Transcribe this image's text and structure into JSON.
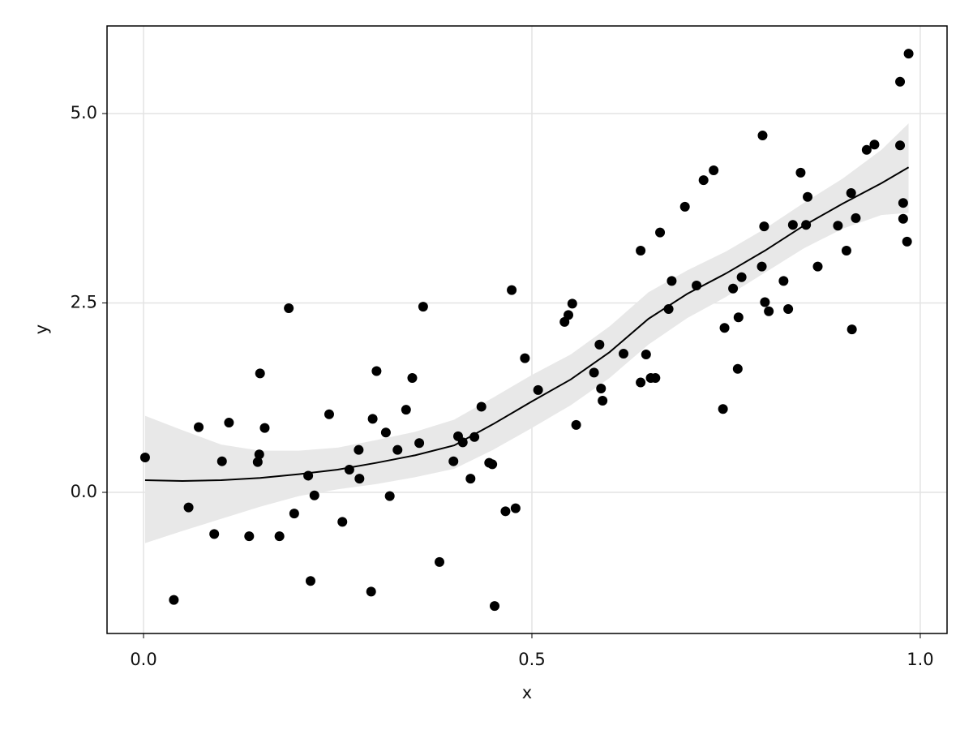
{
  "chart_data": {
    "type": "scatter",
    "xlabel": "x",
    "ylabel": "y",
    "xlim": [
      -0.047,
      1.0345
    ],
    "ylim": [
      -1.863,
      6.156
    ],
    "xticks": [
      {
        "value": 0,
        "label": "0.0"
      },
      {
        "value": 0.5,
        "label": "0.5"
      },
      {
        "value": 1,
        "label": "1.0"
      }
    ],
    "yticks": [
      {
        "value": 0,
        "label": "0.0"
      },
      {
        "value": 2.5,
        "label": "2.5"
      },
      {
        "value": 5,
        "label": "5.0"
      }
    ],
    "grid": true,
    "color": "#000000",
    "band_color": "#e8e8e8",
    "x": [
      0.002,
      0.039,
      0.058,
      0.071,
      0.091,
      0.101,
      0.11,
      0.136,
      0.147,
      0.149,
      0.15,
      0.156,
      0.175,
      0.187,
      0.194,
      0.212,
      0.215,
      0.22,
      0.239,
      0.256,
      0.265,
      0.277,
      0.278,
      0.293,
      0.295,
      0.3,
      0.312,
      0.317,
      0.327,
      0.338,
      0.346,
      0.355,
      0.36,
      0.381,
      0.399,
      0.405,
      0.411,
      0.421,
      0.426,
      0.435,
      0.445,
      0.449,
      0.452,
      0.466,
      0.474,
      0.479,
      0.491,
      0.508,
      0.542,
      0.547,
      0.552,
      0.557,
      0.58,
      0.587,
      0.589,
      0.591,
      0.618,
      0.64,
      0.64,
      0.647,
      0.653,
      0.659,
      0.665,
      0.676,
      0.68,
      0.697,
      0.712,
      0.721,
      0.734,
      0.746,
      0.748,
      0.759,
      0.765,
      0.766,
      0.77,
      0.796,
      0.797,
      0.799,
      0.8,
      0.805,
      0.824,
      0.83,
      0.836,
      0.846,
      0.853,
      0.855,
      0.868,
      0.894,
      0.905,
      0.911,
      0.912,
      0.917,
      0.931,
      0.941,
      0.974,
      0.974,
      0.978,
      0.978,
      0.983,
      0.985
    ],
    "values": [
      0.46,
      -1.42,
      -0.2,
      0.86,
      -0.55,
      0.41,
      0.92,
      -0.58,
      0.4,
      0.5,
      1.57,
      0.85,
      -0.58,
      2.43,
      -0.28,
      0.22,
      -1.17,
      -0.04,
      1.03,
      -0.39,
      0.3,
      0.56,
      0.18,
      -1.31,
      0.97,
      1.6,
      0.79,
      -0.05,
      0.56,
      1.09,
      1.51,
      0.65,
      2.45,
      -0.92,
      0.41,
      0.74,
      0.66,
      0.18,
      0.73,
      1.13,
      0.39,
      0.37,
      -1.5,
      -0.25,
      2.67,
      -0.21,
      1.77,
      1.35,
      2.25,
      2.34,
      2.49,
      0.89,
      1.58,
      1.95,
      1.37,
      1.21,
      1.83,
      1.45,
      3.19,
      1.82,
      1.51,
      1.51,
      3.43,
      2.42,
      2.79,
      3.77,
      2.73,
      4.12,
      4.25,
      1.1,
      2.17,
      2.69,
      1.63,
      2.31,
      2.84,
      2.98,
      4.71,
      3.51,
      2.51,
      2.39,
      2.79,
      2.42,
      3.53,
      4.22,
      3.53,
      3.9,
      2.98,
      3.52,
      3.19,
      3.95,
      2.15,
      3.62,
      4.52,
      4.59,
      5.42,
      4.58,
      3.82,
      3.61,
      3.31,
      5.79
    ],
    "fit": {
      "x": [
        0.002,
        0.05,
        0.1,
        0.15,
        0.2,
        0.25,
        0.3,
        0.35,
        0.4,
        0.45,
        0.5,
        0.55,
        0.6,
        0.65,
        0.7,
        0.75,
        0.8,
        0.85,
        0.9,
        0.95,
        0.985
      ],
      "y": [
        0.16,
        0.15,
        0.16,
        0.19,
        0.24,
        0.3,
        0.39,
        0.49,
        0.62,
        0.9,
        1.2,
        1.49,
        1.85,
        2.29,
        2.62,
        2.89,
        3.19,
        3.52,
        3.81,
        4.08,
        4.29
      ],
      "lower": [
        -0.67,
        -0.51,
        -0.35,
        -0.19,
        -0.05,
        0.04,
        0.11,
        0.2,
        0.31,
        0.56,
        0.85,
        1.15,
        1.51,
        1.95,
        2.3,
        2.58,
        2.9,
        3.22,
        3.48,
        3.66,
        3.69
      ],
      "upper": [
        1.01,
        0.82,
        0.63,
        0.55,
        0.55,
        0.59,
        0.69,
        0.8,
        0.96,
        1.25,
        1.55,
        1.82,
        2.19,
        2.64,
        2.93,
        3.18,
        3.48,
        3.82,
        4.14,
        4.52,
        4.87
      ]
    }
  }
}
